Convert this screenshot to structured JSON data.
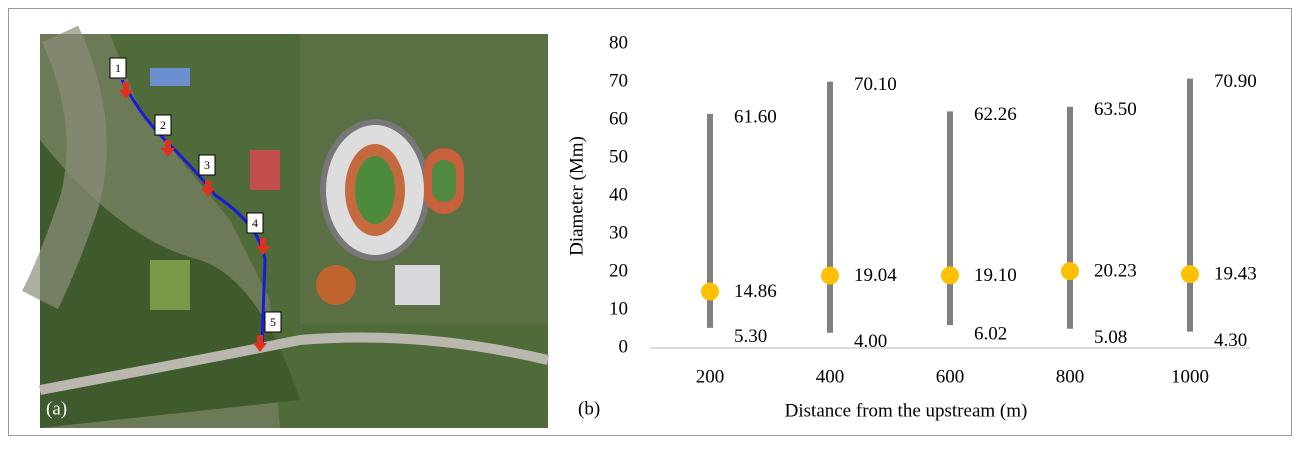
{
  "map": {
    "markers": [
      "1",
      "2",
      "3",
      "4",
      "5"
    ],
    "panel_label": "(a)"
  },
  "chart_data": {
    "type": "range",
    "panel_label": "(b)",
    "x_label": "Distance from the upstream (m)",
    "y_label": "Diameter (Mm)",
    "categories": [
      "200",
      "400",
      "600",
      "800",
      "1000"
    ],
    "series": [
      {
        "color": "#808080",
        "values": [
          61.6,
          70.1,
          62.26,
          63.5,
          70.9
        ],
        "value_labels": [
          "61.60",
          "70.10",
          "62.26",
          "63.50",
          "70.90"
        ]
      },
      {
        "color": "#808080",
        "values": [
          5.3,
          4.0,
          6.02,
          5.08,
          4.3
        ],
        "value_labels": [
          "5.30",
          "4.00",
          "6.02",
          "5.08",
          "4.30"
        ]
      },
      {
        "color": "#ffc000",
        "values": [
          14.86,
          19.04,
          19.1,
          20.23,
          19.43
        ],
        "value_labels": [
          "14.86",
          "19.04",
          "19.10",
          "20.23",
          "19.43"
        ]
      }
    ],
    "ylim": [
      0,
      80
    ],
    "yticks": [
      0,
      10,
      20,
      30,
      40,
      50,
      60,
      70,
      80
    ],
    "grid": false
  }
}
